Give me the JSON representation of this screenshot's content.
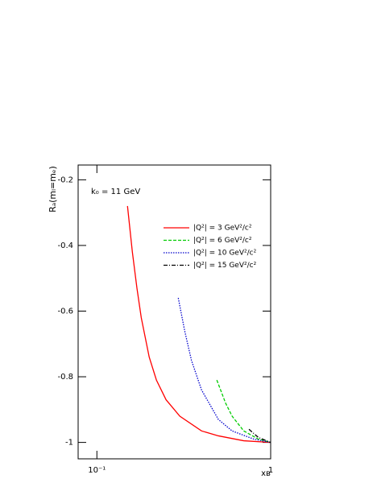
{
  "chart_data": {
    "type": "line",
    "annotation": "k₀ = 11 GeV",
    "xlabel": "xʙ",
    "ylabel": "Rₐ(mₗ=mₑ)",
    "xscale": "log",
    "xlim": [
      0.078,
      1
    ],
    "xticks": [
      {
        "value": 0.1,
        "label": "10⁻¹"
      },
      1
    ],
    "ylim": [
      -1.05,
      -0.155
    ],
    "yticks": [
      -0.2,
      -0.4,
      -0.6,
      -0.8,
      -1
    ],
    "legend": "upper right",
    "series": [
      {
        "name": "|Q²| = 3 GeV²/c²",
        "color": "#ff0000",
        "dash": "solid",
        "x": [
          0.15,
          0.16,
          0.17,
          0.18,
          0.2,
          0.22,
          0.25,
          0.3,
          0.4,
          0.5,
          0.7,
          1
        ],
        "values": [
          -0.28,
          -0.42,
          -0.53,
          -0.62,
          -0.74,
          -0.81,
          -0.87,
          -0.92,
          -0.965,
          -0.98,
          -0.995,
          -1
        ]
      },
      {
        "name": "|Q²| = 6 GeV²/c²",
        "color": "#00cc00",
        "dash": "dashed",
        "x": [
          0.49,
          0.55,
          0.6,
          0.7,
          0.85,
          1
        ],
        "values": [
          -0.81,
          -0.88,
          -0.92,
          -0.965,
          -0.99,
          -1
        ]
      },
      {
        "name": "|Q²| = 10 GeV²/c²",
        "color": "#0000cc",
        "dash": "dotted",
        "x": [
          0.294,
          0.32,
          0.35,
          0.4,
          0.5,
          0.6,
          0.8,
          1
        ],
        "values": [
          -0.56,
          -0.66,
          -0.75,
          -0.84,
          -0.93,
          -0.965,
          -0.99,
          -1
        ]
      },
      {
        "name": "|Q²| = 15 GeV²/c²",
        "color": "#000000",
        "dash": "dashdot",
        "x": [
          0.75,
          0.85,
          1
        ],
        "values": [
          -0.96,
          -0.985,
          -1
        ]
      }
    ]
  }
}
